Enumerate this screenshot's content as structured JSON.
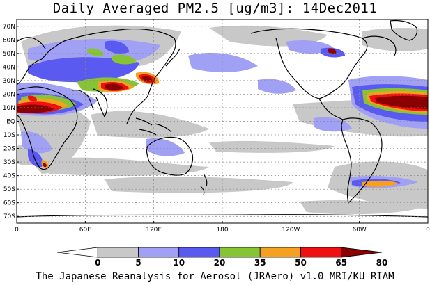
{
  "title": "Daily Averaged PM2.5 [ug/m3]: 14Dec2011",
  "footer": "The Japanese Reanalysis for Aerosol (JRAero) v1.0 MRI/KU_RIAM",
  "lat_labels": [
    "70N",
    "60N",
    "50N",
    "40N",
    "30N",
    "20N",
    "10N",
    "EQ",
    "10S",
    "20S",
    "30S",
    "40S",
    "50S",
    "60S",
    "70S"
  ],
  "lon_labels": [
    "0",
    "60E",
    "120E",
    "180",
    "120W",
    "60W",
    "0"
  ],
  "legend": {
    "thresholds": [
      "0",
      "5",
      "10",
      "20",
      "35",
      "50",
      "65",
      "80"
    ],
    "colors": [
      "#ffffff",
      "#c8c8c8",
      "#a0a0f5",
      "#5a5af0",
      "#86c436",
      "#f5a020",
      "#f01010",
      "#8b0000"
    ]
  },
  "colors": {
    "ocean_background": "#ffffff",
    "coastline": "#000000",
    "grid": "#888888"
  },
  "chart_data": {
    "type": "heatmap",
    "title": "Daily Averaged PM2.5 [ug/m3]: 14Dec2011",
    "xlim": [
      0,
      360
    ],
    "ylim": [
      -75,
      75
    ],
    "units": "ug/m3",
    "levels": [
      0,
      5,
      10,
      20,
      35,
      50,
      65,
      80
    ]
  }
}
